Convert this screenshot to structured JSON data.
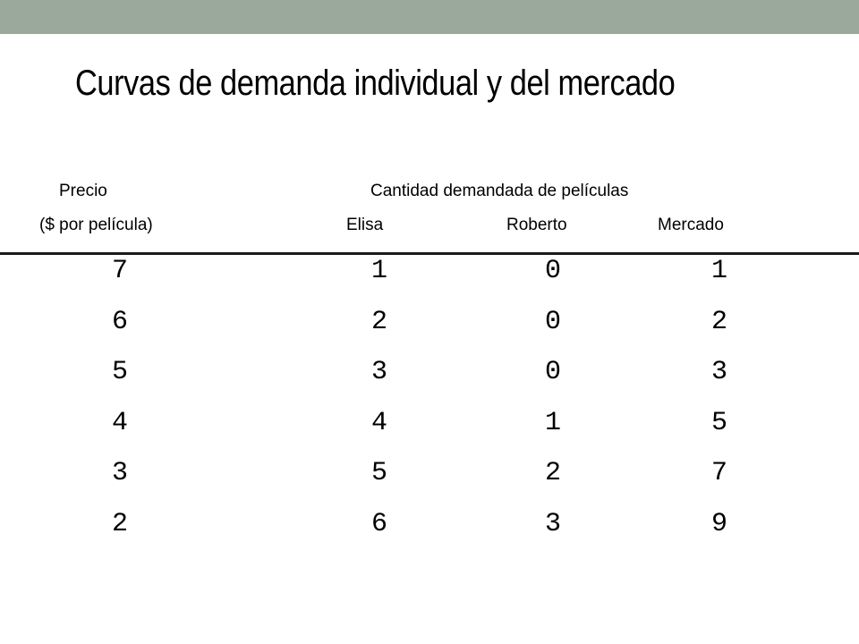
{
  "colors": {
    "top_bar": "#9aa99b",
    "rule": "#1a1a1a",
    "text": "#000000",
    "background": "#ffffff"
  },
  "slide": {
    "title": "Curvas de demanda individual y del mercado"
  },
  "table": {
    "price_header": "Precio",
    "price_unit_header": "($ por película)",
    "quantity_header": "Cantidad demandada de películas",
    "columns": [
      "Elisa",
      "Roberto",
      "Mercado"
    ],
    "rows": [
      [
        "7",
        "1",
        "0",
        "1"
      ],
      [
        "6",
        "2",
        "0",
        "2"
      ],
      [
        "5",
        "3",
        "0",
        "3"
      ],
      [
        "4",
        "4",
        "1",
        "5"
      ],
      [
        "3",
        "5",
        "2",
        "7"
      ],
      [
        "2",
        "6",
        "3",
        "9"
      ]
    ]
  }
}
